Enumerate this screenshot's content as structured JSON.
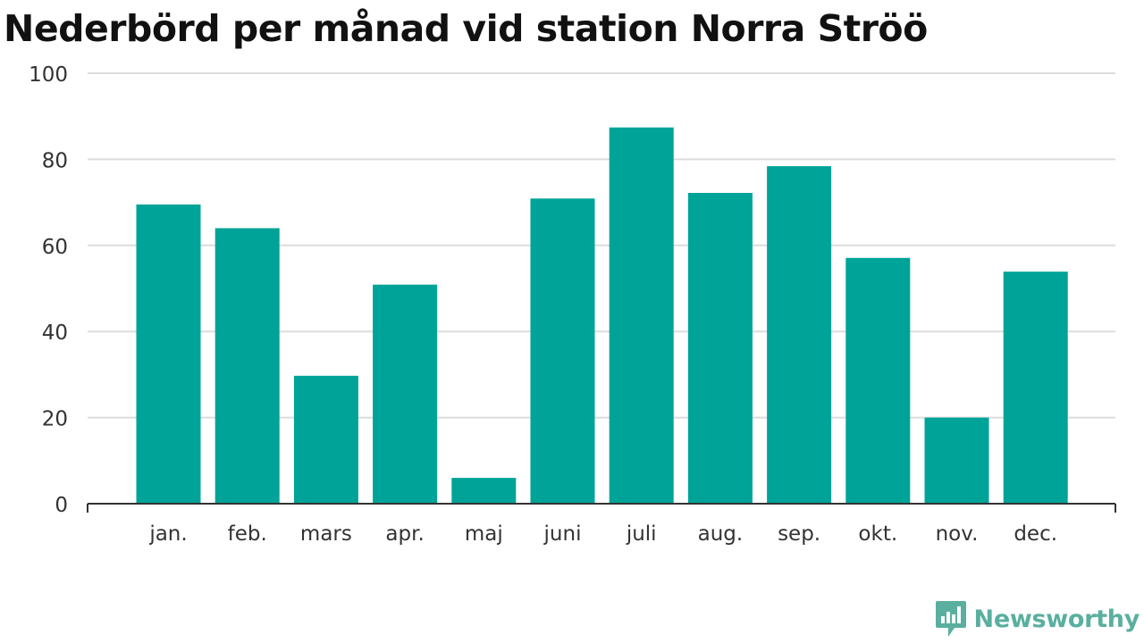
{
  "colors": {
    "bar": "#00a398",
    "grid": "#dcdcdc",
    "axis": "#333333",
    "tick_text": "#333333",
    "brand": "#5aaf9f"
  },
  "brand": {
    "name": "Newsworthy",
    "icon": "newsworthy-logo-icon"
  },
  "chart_data": {
    "type": "bar",
    "title": "Nederbörd per månad vid station Norra Ströö",
    "xlabel": "",
    "ylabel": "",
    "categories": [
      "jan.",
      "feb.",
      "mars",
      "apr.",
      "maj",
      "juni",
      "juli",
      "aug.",
      "sep.",
      "okt.",
      "nov.",
      "dec."
    ],
    "values": [
      69.5,
      64.0,
      29.7,
      50.9,
      6.0,
      70.9,
      87.4,
      72.2,
      78.4,
      57.1,
      20.0,
      53.9
    ],
    "ylim": [
      0,
      100
    ],
    "yticks": [
      0,
      20,
      40,
      60,
      80,
      100
    ],
    "grid": true,
    "legend": "none"
  }
}
